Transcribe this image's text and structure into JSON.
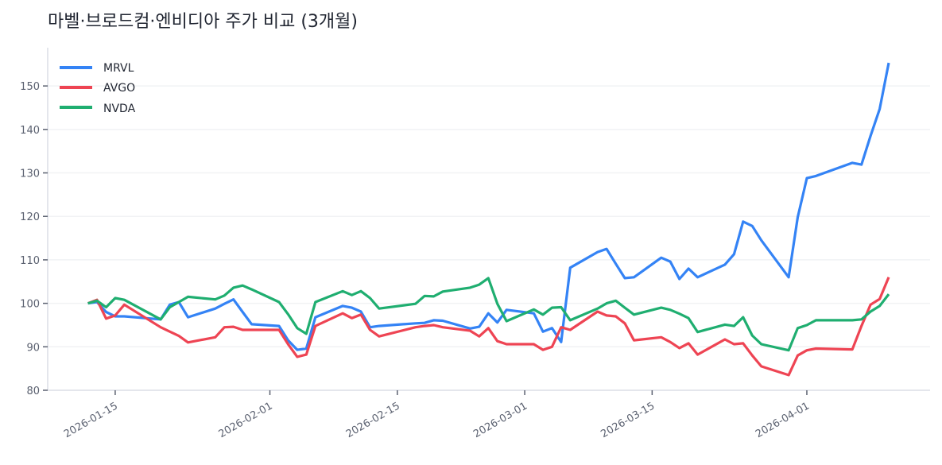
{
  "chart_data": {
    "type": "line",
    "title": "마벨·브로드컴·엔비디아 주가 비교 (3개월)",
    "xlabel": "",
    "ylabel": "",
    "xlim": [
      "2026-01-07T14:00",
      "2026-04-14T13:00"
    ],
    "ylim": [
      80,
      158.8
    ],
    "yticks": [
      80,
      90,
      100,
      110,
      120,
      130,
      140,
      150
    ],
    "xticks": [
      "2026-01-15",
      "2026-02-01",
      "2026-02-15",
      "2026-03-01",
      "2026-03-15",
      "2026-04-01"
    ],
    "grid": "horizontal",
    "legend_position": "top-left",
    "x": [
      "2026-01-12",
      "2026-01-13",
      "2026-01-14",
      "2026-01-15",
      "2026-01-16",
      "2026-01-20",
      "2026-01-21",
      "2026-01-22",
      "2026-01-23",
      "2026-01-26",
      "2026-01-27",
      "2026-01-28",
      "2026-01-29",
      "2026-01-30",
      "2026-02-02",
      "2026-02-03",
      "2026-02-04",
      "2026-02-05",
      "2026-02-06",
      "2026-02-09",
      "2026-02-10",
      "2026-02-11",
      "2026-02-12",
      "2026-02-13",
      "2026-02-17",
      "2026-02-18",
      "2026-02-19",
      "2026-02-20",
      "2026-02-23",
      "2026-02-24",
      "2026-02-25",
      "2026-02-26",
      "2026-02-27",
      "2026-03-02",
      "2026-03-03",
      "2026-03-04",
      "2026-03-05",
      "2026-03-06",
      "2026-03-09",
      "2026-03-10",
      "2026-03-11",
      "2026-03-12",
      "2026-03-13",
      "2026-03-16",
      "2026-03-17",
      "2026-03-18",
      "2026-03-19",
      "2026-03-20",
      "2026-03-23",
      "2026-03-24",
      "2026-03-25",
      "2026-03-26",
      "2026-03-27",
      "2026-03-30",
      "2026-03-31",
      "2026-04-01",
      "2026-04-02",
      "2026-04-06",
      "2026-04-07",
      "2026-04-08",
      "2026-04-09",
      "2026-04-10"
    ],
    "series": [
      {
        "name": "MRVL",
        "color": "#3483f5",
        "values": [
          100,
          100.3,
          98,
          97,
          97,
          96.3,
          99.7,
          100.3,
          96.8,
          98.8,
          99.9,
          100.9,
          98,
          95.2,
          94.8,
          91.5,
          89.3,
          89.6,
          96.8,
          99.4,
          99,
          98.1,
          94.5,
          94.8,
          95.4,
          95.5,
          96.1,
          96,
          94.2,
          94.6,
          97.7,
          95.6,
          98.5,
          97.7,
          93.5,
          94.3,
          91.1,
          108.2,
          111.8,
          112.5,
          109.1,
          105.8,
          106,
          110.5,
          109.6,
          105.6,
          108,
          106,
          108.9,
          111.3,
          118.8,
          117.8,
          114.5,
          106,
          119.8,
          128.8,
          129.3,
          132.3,
          131.9,
          138.5,
          144.7,
          155.3
        ]
      },
      {
        "name": "AVGO",
        "color": "#ee4453",
        "values": [
          100,
          100.8,
          96.5,
          97.2,
          99.7,
          94.5,
          93.5,
          92.5,
          91,
          92.2,
          94.5,
          94.6,
          93.9,
          93.9,
          93.9,
          90.6,
          87.7,
          88.2,
          94.8,
          97.7,
          96.6,
          97.4,
          93.9,
          92.4,
          94.5,
          94.8,
          95,
          94.5,
          93.7,
          92.4,
          94.3,
          91.3,
          90.6,
          90.6,
          89.3,
          90,
          94.5,
          93.9,
          98.1,
          97.2,
          97,
          95.4,
          91.5,
          92.2,
          91.1,
          89.7,
          90.8,
          88.2,
          91.7,
          90.6,
          90.8,
          88,
          85.5,
          83.5,
          88,
          89.2,
          89.6,
          89.4,
          94.8,
          99.7,
          101,
          106
        ]
      },
      {
        "name": "NVDA",
        "color": "#1fae70",
        "values": [
          100,
          100.6,
          99.1,
          101.2,
          100.8,
          96.3,
          99.1,
          100.3,
          101.5,
          100.9,
          101.8,
          103.6,
          104.1,
          103.2,
          100.3,
          97.5,
          94.3,
          93,
          100.3,
          102.8,
          101.9,
          102.8,
          101.2,
          98.8,
          99.9,
          101.7,
          101.6,
          102.7,
          103.6,
          104.3,
          105.8,
          99.9,
          95.9,
          98.6,
          97.4,
          99,
          99.1,
          96.1,
          98.8,
          100,
          100.6,
          99,
          97.4,
          99,
          98.5,
          97.6,
          96.6,
          93.4,
          95.1,
          94.8,
          96.8,
          92.6,
          90.6,
          89.2,
          94.3,
          95,
          96.1,
          96.1,
          96.3,
          98.1,
          99.4,
          102.1
        ]
      }
    ]
  }
}
